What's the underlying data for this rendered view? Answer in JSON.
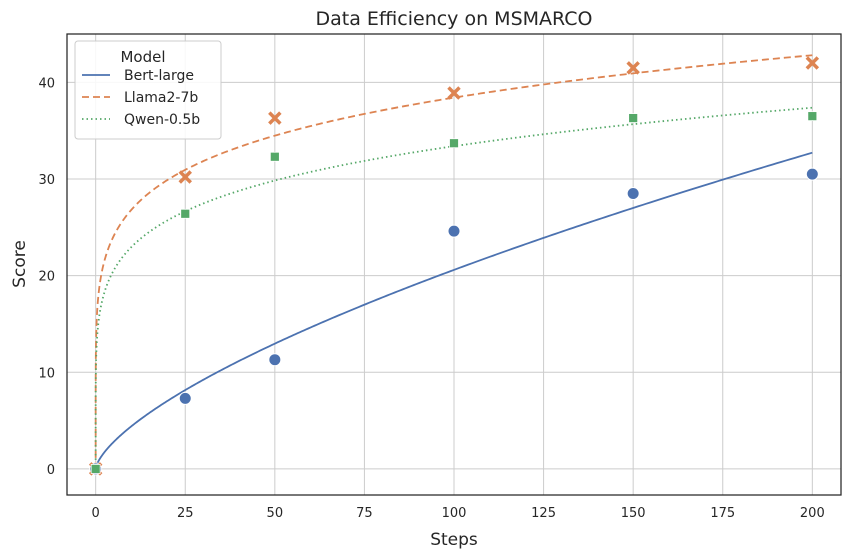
{
  "chart_data": {
    "type": "scatter",
    "title": "Data Efficiency on MSMARCO",
    "xlabel": "Steps",
    "ylabel": "Score",
    "xlim": [
      -8,
      208
    ],
    "ylim": [
      -2.7,
      45
    ],
    "xticks": [
      0,
      25,
      50,
      75,
      100,
      125,
      150,
      175,
      200
    ],
    "yticks": [
      0,
      10,
      20,
      30,
      40
    ],
    "grid": true,
    "legend": {
      "title": "Model",
      "placement": "top-left"
    },
    "series": [
      {
        "name": "Bert-large",
        "color": "#4c72b0",
        "marker": "circle",
        "line_style": "solid",
        "points": {
          "x": [
            0,
            25,
            50,
            100,
            150,
            200
          ],
          "y": [
            0,
            7.3,
            11.3,
            24.6,
            28.5,
            30.5
          ]
        },
        "fit": {
          "a": 0.95,
          "b": 0.668
        }
      },
      {
        "name": "Llama2-7b",
        "color": "#dd8452",
        "marker": "x",
        "line_style": "dashed",
        "points": {
          "x": [
            0,
            25,
            50,
            100,
            150,
            200
          ],
          "y": [
            0,
            30.2,
            36.3,
            38.9,
            41.5,
            42.0
          ]
        },
        "fit": {
          "a": 18.73,
          "b": 0.156
        }
      },
      {
        "name": "Qwen-0.5b",
        "color": "#55a868",
        "marker": "square",
        "line_style": "dotted",
        "points": {
          "x": [
            0,
            25,
            50,
            100,
            150,
            200
          ],
          "y": [
            0,
            26.4,
            32.3,
            33.7,
            36.3,
            36.5
          ]
        },
        "fit": {
          "a": 15.8,
          "b": 0.1625
        }
      }
    ]
  }
}
